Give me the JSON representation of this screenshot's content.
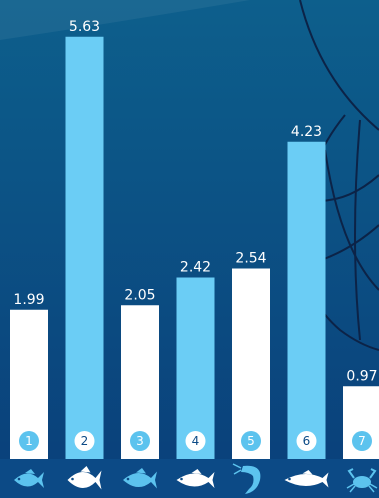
{
  "chart_data": {
    "type": "bar",
    "categories": [
      "1",
      "2",
      "3",
      "4",
      "5",
      "6",
      "7"
    ],
    "values": [
      1.99,
      5.63,
      2.05,
      2.42,
      2.54,
      4.23,
      0.97
    ],
    "value_labels": [
      "1.99",
      "5.63",
      "2.05",
      "2.42",
      "2.54",
      "4.23",
      "0.97"
    ],
    "bar_colors": [
      "#ffffff",
      "#6bcdf5",
      "#ffffff",
      "#6bcdf5",
      "#ffffff",
      "#6bcdf5",
      "#ffffff"
    ],
    "category_icons": [
      "fish-icon",
      "grouper-icon",
      "snapper-icon",
      "tuna-icon",
      "shrimp-icon",
      "mackerel-icon",
      "crab-icon"
    ],
    "ylim": [
      0,
      5.8
    ],
    "grid": false,
    "legend": "none"
  },
  "colors": {
    "background_top": "#0d5f8c",
    "background_bottom": "#0a3f7a",
    "icon_strip": "#0c4a86",
    "icon_color": "#5cc3ee",
    "bar_dark": "#6bcdf5",
    "bar_light": "#ffffff",
    "badge": "#5cc3ee",
    "net": "#0c2347"
  }
}
